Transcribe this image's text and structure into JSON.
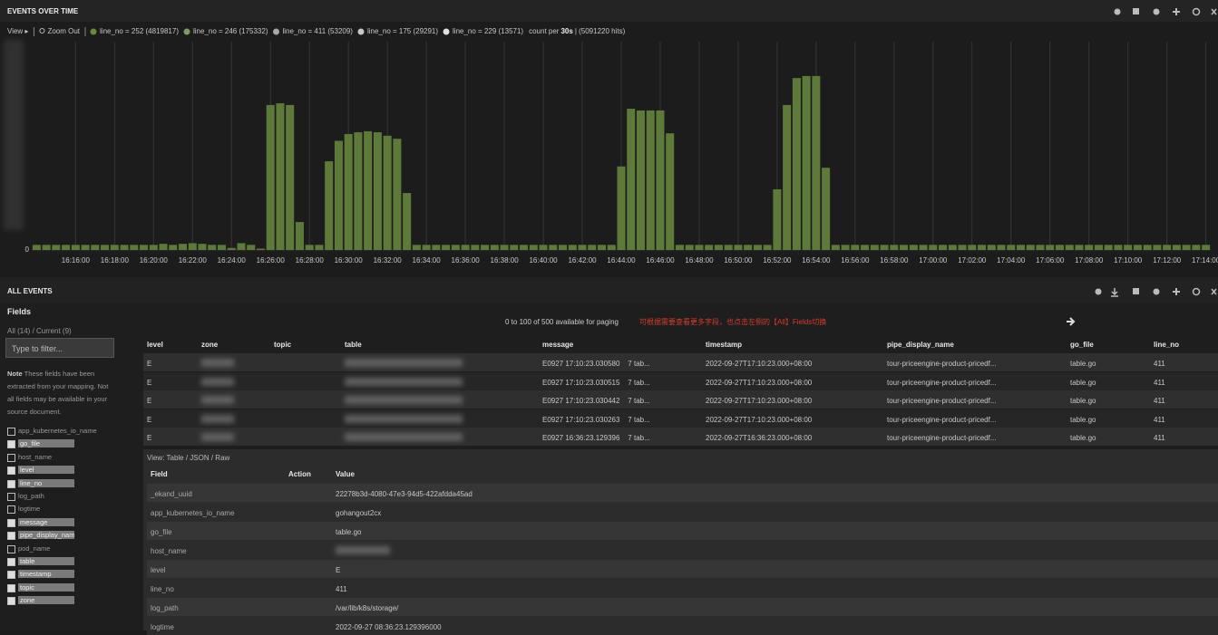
{
  "chart_data": {
    "type": "bar",
    "title": "EVENTS OVER TIME",
    "categories": [
      null,
      null,
      null,
      null,
      "16:16:00",
      null,
      null,
      null,
      "16:18:00",
      null,
      null,
      null,
      "16:20:00",
      null,
      null,
      null,
      "16:22:00",
      null,
      null,
      null,
      "16:24:00",
      null,
      null,
      null,
      "16:26:00",
      null,
      null,
      null,
      "16:28:00",
      null,
      null,
      null,
      "16:30:00",
      null,
      null,
      null,
      "16:32:00",
      null,
      null,
      null,
      "16:34:00",
      null,
      null,
      null,
      "16:36:00",
      null,
      null,
      null,
      "16:38:00",
      null,
      null,
      null,
      "16:40:00",
      null,
      null,
      null,
      "16:42:00",
      null,
      null,
      null,
      "16:44:00",
      null,
      null,
      null,
      "16:46:00",
      null,
      null,
      null,
      "16:48:00",
      null,
      null,
      null,
      "16:50:00",
      null,
      null,
      null,
      "16:52:00",
      null,
      null,
      null,
      "16:54:00",
      null,
      null,
      null,
      "16:56:00",
      null,
      null,
      null,
      "16:58:00",
      null,
      null,
      null,
      "17:00:00",
      null,
      null,
      null,
      "17:02:00",
      null,
      null,
      null,
      "17:04:00",
      null,
      null,
      null,
      "17:06:00",
      null,
      null,
      null,
      "17:08:00",
      null,
      null,
      null,
      "17:10:00",
      null,
      null,
      null,
      "17:12:00",
      null,
      null,
      null,
      "17:14:00"
    ],
    "values": [
      150,
      150,
      150,
      150,
      150,
      150,
      150,
      150,
      150,
      150,
      150,
      150,
      150,
      180,
      150,
      180,
      200,
      180,
      150,
      150,
      60,
      200,
      150,
      40,
      4250,
      4300,
      4250,
      820,
      150,
      150,
      2600,
      3200,
      3400,
      3450,
      3480,
      3450,
      3350,
      3260,
      1670,
      150,
      150,
      150,
      150,
      150,
      150,
      150,
      150,
      150,
      150,
      150,
      150,
      150,
      150,
      150,
      150,
      150,
      150,
      150,
      150,
      150,
      2450,
      4140,
      4090,
      4090,
      4090,
      3420,
      150,
      150,
      150,
      150,
      150,
      150,
      150,
      150,
      150,
      150,
      1780,
      4250,
      5040,
      5100,
      5100,
      2410,
      150,
      150,
      150,
      150,
      150,
      150,
      150,
      150,
      150,
      150,
      150,
      150,
      150,
      150,
      150,
      150,
      150,
      150,
      150,
      150,
      150,
      150,
      150,
      150,
      150,
      150,
      150,
      150,
      150,
      150,
      150,
      150,
      150,
      150,
      150,
      150,
      150,
      150,
      150
    ],
    "color": "#5e7a3a",
    "ylim": [
      0,
      6000
    ],
    "yticks": [
      0
    ],
    "grid": true
  },
  "toolbar": {
    "view": "View ▸",
    "zoom_out": "Zoom Out",
    "legend": [
      {
        "label": "line_no = 252 (4819817)",
        "color": "#6a8a3a"
      },
      {
        "label": "line_no = 246 (175332)",
        "color": "#7f9a6a"
      },
      {
        "label": "line_no = 411 (53209)",
        "color": "#a8a8a8"
      },
      {
        "label": "line_no = 175 (29291)",
        "color": "#c8c8c8"
      },
      {
        "label": "line_no = 229 (13571)",
        "color": "#e0e0e0"
      }
    ],
    "interval": "count per",
    "interval_value": "30s",
    "hits": "| (5091220 hits)"
  },
  "events": {
    "title": "ALL EVENTS",
    "fields_title": "Fields",
    "fields_scope": "All (14) / Current (9)",
    "filter_placeholder": "Type to filter...",
    "note_label": "Note",
    "note": "These fields have been extracted from your mapping. Not all fields may be available in your source document.",
    "fields": [
      {
        "name": "app_kubernetes_io_name",
        "checked": false
      },
      {
        "name": "go_file",
        "checked": true
      },
      {
        "name": "host_name",
        "checked": false
      },
      {
        "name": "level",
        "checked": true
      },
      {
        "name": "line_no",
        "checked": true
      },
      {
        "name": "log_path",
        "checked": false
      },
      {
        "name": "logtime",
        "checked": false
      },
      {
        "name": "message",
        "checked": true
      },
      {
        "name": "pipe_display_name",
        "checked": true
      },
      {
        "name": "pod_name",
        "checked": false
      },
      {
        "name": "table",
        "checked": true
      },
      {
        "name": "timestamp",
        "checked": true
      },
      {
        "name": "topic",
        "checked": true
      },
      {
        "name": "zone",
        "checked": true
      }
    ],
    "paging": "0 to 100 of 500 available for paging",
    "hint": "可根据需要查看更多字段，也点击左侧的【All】Fields切换",
    "columns": [
      "level",
      "zone",
      "topic",
      "table",
      "message",
      "timestamp",
      "pipe_display_name",
      "go_file",
      "line_no"
    ],
    "rows": [
      {
        "level": "E",
        "message": "E0927 17:10:23.030580    7 tab...",
        "timestamp": "2022-09-27T17:10:23.000+08:00",
        "pipe_display_name": "tour-priceengine-product-pricedf...",
        "go_file": "table.go",
        "line_no": 411
      },
      {
        "level": "E",
        "message": "E0927 17:10:23.030515    7 tab...",
        "timestamp": "2022-09-27T17:10:23.000+08:00",
        "pipe_display_name": "tour-priceengine-product-pricedf...",
        "go_file": "table.go",
        "line_no": 411
      },
      {
        "level": "E",
        "message": "E0927 17:10:23.030442    7 tab...",
        "timestamp": "2022-09-27T17:10:23.000+08:00",
        "pipe_display_name": "tour-priceengine-product-pricedf...",
        "go_file": "table.go",
        "line_no": 411
      },
      {
        "level": "E",
        "message": "E0927 17:10:23.030263    7 tab...",
        "timestamp": "2022-09-27T17:10:23.000+08:00",
        "pipe_display_name": "tour-priceengine-product-pricedf...",
        "go_file": "table.go",
        "line_no": 411
      },
      {
        "level": "E",
        "message": "E0927 16:36:23.129396    7 tab...",
        "timestamp": "2022-09-27T16:36:23.000+08:00",
        "pipe_display_name": "tour-priceengine-product-pricedf...",
        "go_file": "table.go",
        "line_no": 411
      }
    ],
    "detail": {
      "view": "View: Table / JSON / Raw",
      "headers": [
        "Field",
        "Action",
        "Value"
      ],
      "rows": [
        [
          "_ekand_uuid",
          "22278b3d-4080-47e3-94d5-422afdda45ad"
        ],
        [
          "app_kubernetes_io_name",
          "gohangout2cx"
        ],
        [
          "go_file",
          "table.go"
        ],
        [
          "host_name",
          null
        ],
        [
          "level",
          "E"
        ],
        [
          "line_no",
          "411"
        ],
        [
          "log_path",
          "/var/lib/k8s/storage/"
        ],
        [
          "logtime",
          "2022-09-27 08:36:23.129396000"
        ]
      ]
    }
  }
}
